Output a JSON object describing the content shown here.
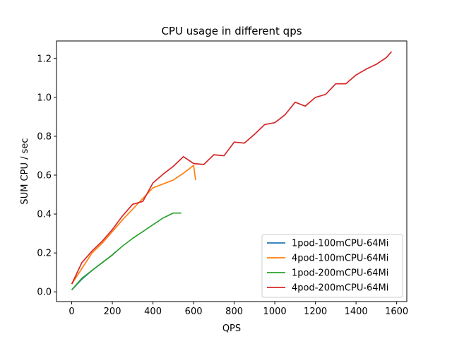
{
  "chart_data": {
    "type": "line",
    "title": "CPU usage in different qps",
    "xlabel": "QPS",
    "ylabel": "SUM CPU / sec",
    "xlim": [
      -75,
      1650
    ],
    "ylim": [
      -0.05,
      1.29
    ],
    "xticks": [
      0,
      200,
      400,
      600,
      800,
      1000,
      1200,
      1400,
      1600
    ],
    "yticks": [
      0.0,
      0.2,
      0.4,
      0.6,
      0.8,
      1.0,
      1.2
    ],
    "ytick_labels": [
      "0.0",
      "0.2",
      "0.4",
      "0.6",
      "0.8",
      "1.0",
      "1.2"
    ],
    "grid": false,
    "legend_position": "lower-right",
    "series": [
      {
        "name": "1pod-100mCPU-64Mi",
        "color": "#1f77b4",
        "x": [
          0,
          50,
          100,
          150,
          200,
          215
        ],
        "y": [
          0.01,
          0.065,
          0.11,
          0.15,
          0.19,
          0.205
        ]
      },
      {
        "name": "4pod-100mCPU-64Mi",
        "color": "#ff7f0e",
        "x": [
          0,
          50,
          100,
          150,
          200,
          250,
          300,
          350,
          400,
          450,
          500,
          550,
          600,
          610
        ],
        "y": [
          0.04,
          0.12,
          0.2,
          0.25,
          0.31,
          0.37,
          0.425,
          0.48,
          0.535,
          0.555,
          0.575,
          0.61,
          0.65,
          0.575
        ]
      },
      {
        "name": "1pod-200mCPU-64Mi",
        "color": "#2ca02c",
        "x": [
          0,
          50,
          100,
          150,
          200,
          250,
          300,
          350,
          400,
          450,
          500,
          540
        ],
        "y": [
          0.01,
          0.07,
          0.11,
          0.15,
          0.19,
          0.235,
          0.275,
          0.31,
          0.345,
          0.38,
          0.405,
          0.405
        ]
      },
      {
        "name": "4pod-200mCPU-64Mi",
        "color": "#d62728",
        "x": [
          0,
          50,
          100,
          150,
          200,
          250,
          300,
          350,
          400,
          450,
          500,
          550,
          600,
          650,
          700,
          750,
          800,
          850,
          900,
          950,
          1000,
          1050,
          1100,
          1150,
          1200,
          1250,
          1300,
          1350,
          1400,
          1450,
          1500,
          1550,
          1575
        ],
        "y": [
          0.04,
          0.15,
          0.21,
          0.26,
          0.32,
          0.39,
          0.45,
          0.465,
          0.56,
          0.605,
          0.645,
          0.695,
          0.66,
          0.655,
          0.705,
          0.7,
          0.77,
          0.765,
          0.81,
          0.86,
          0.87,
          0.91,
          0.975,
          0.955,
          1.0,
          1.015,
          1.07,
          1.07,
          1.115,
          1.145,
          1.17,
          1.205,
          1.235
        ]
      }
    ]
  }
}
